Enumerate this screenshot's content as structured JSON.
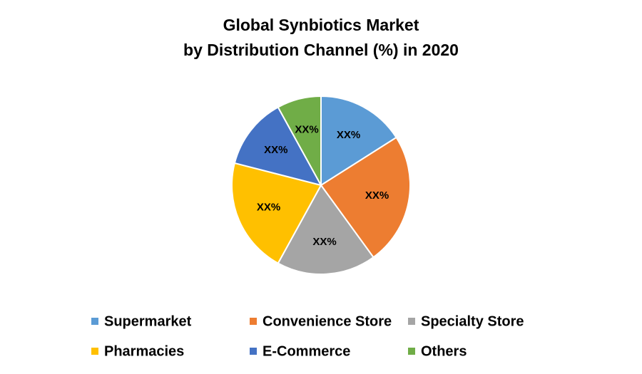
{
  "chart_data": {
    "type": "pie",
    "title": [
      "Global Synbiotics Market",
      "by Distribution Channel (%) in 2020"
    ],
    "categories": [
      "Supermarket",
      "Convenience Store",
      "Specialty Store",
      "Pharmacies",
      "E-Commerce",
      "Others"
    ],
    "values": [
      16,
      24,
      18,
      21,
      13,
      8
    ],
    "value_labels": [
      "XX%",
      "XX%",
      "XX%",
      "XX%",
      "XX%",
      "XX%"
    ],
    "colors": [
      "#5b9bd5",
      "#ed7d31",
      "#a5a5a5",
      "#ffc000",
      "#4472c4",
      "#70ad47"
    ],
    "legend": "bottom"
  }
}
